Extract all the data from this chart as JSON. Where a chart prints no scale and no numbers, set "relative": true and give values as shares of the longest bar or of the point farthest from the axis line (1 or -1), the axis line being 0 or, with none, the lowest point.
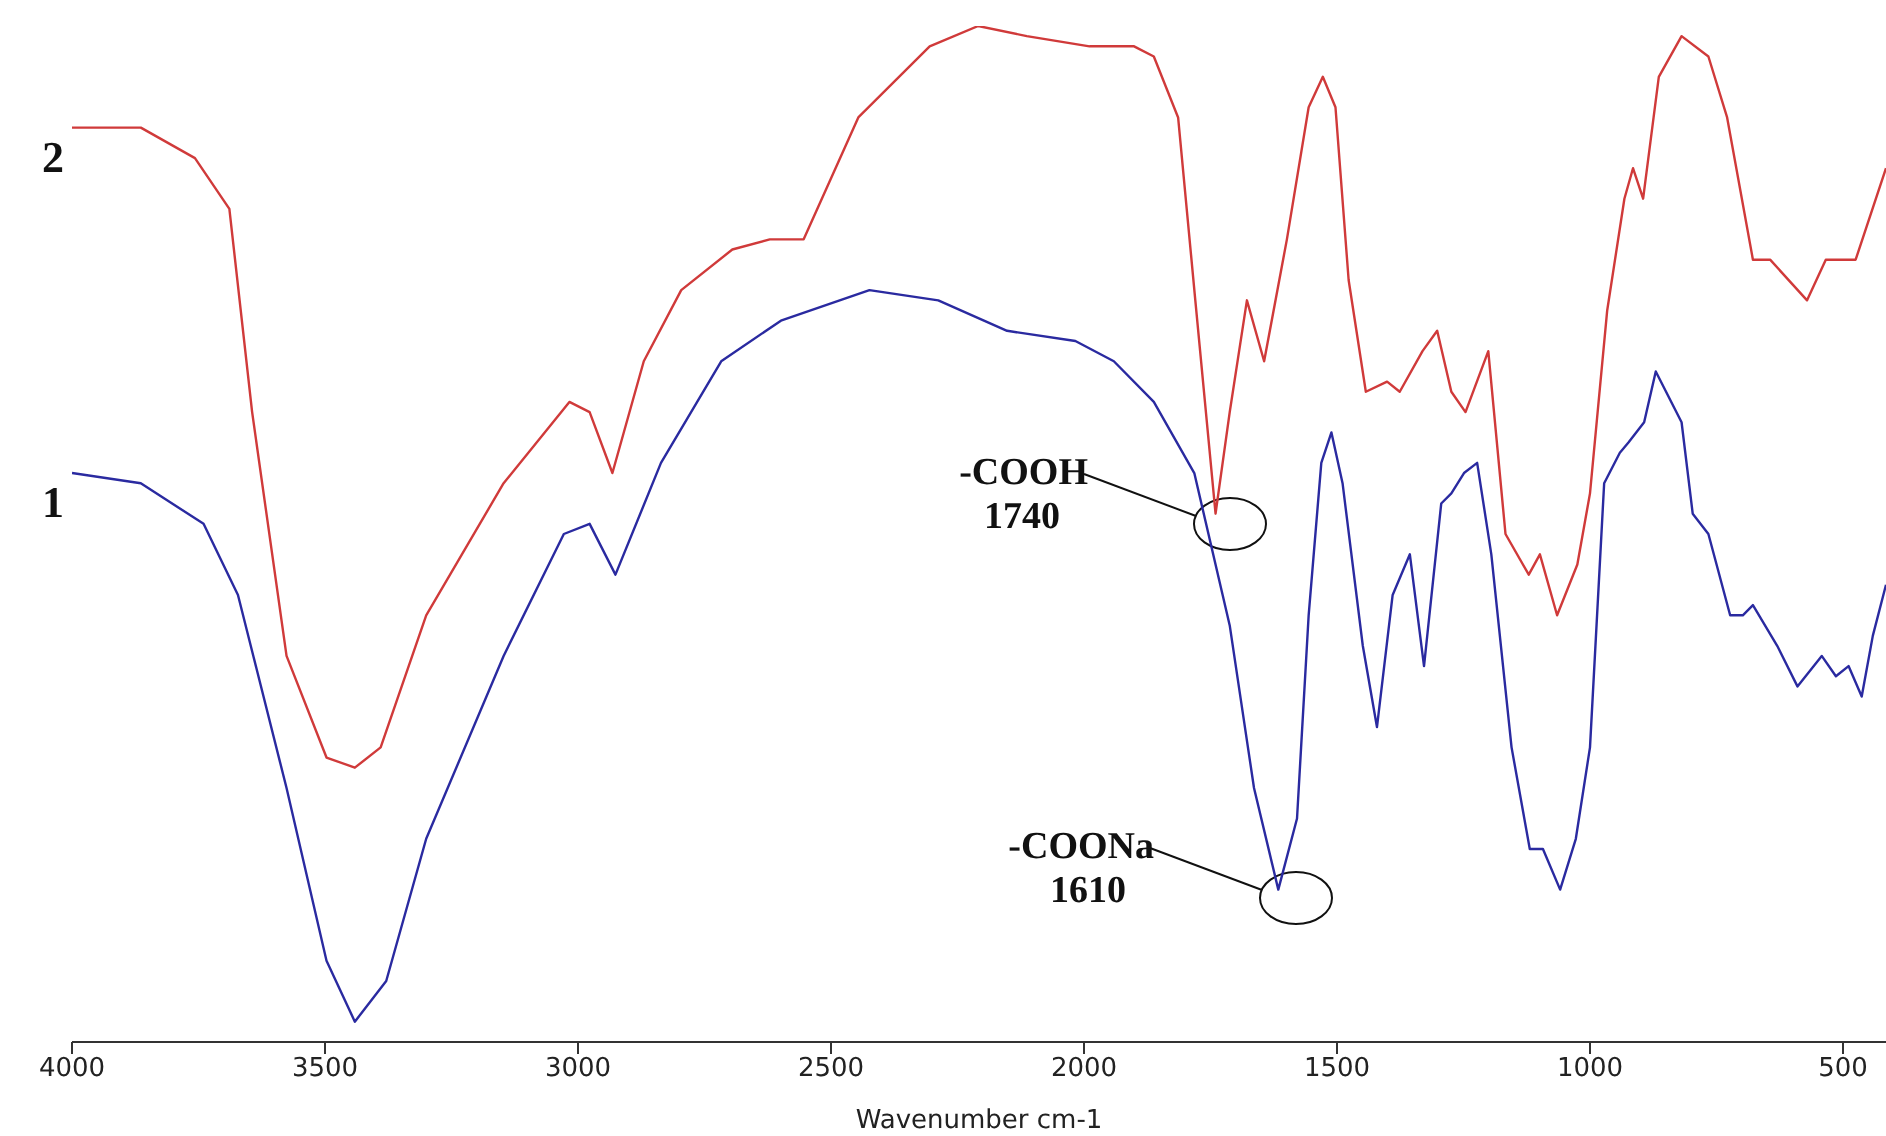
{
  "chart_data": {
    "type": "line",
    "xlabel": "Wavenumber cm-1",
    "relative": true,
    "legend": false,
    "grid": false,
    "marker": "none",
    "line_style": "solid",
    "xlim": [
      4000,
      415
    ],
    "xticks": [
      4000,
      3500,
      3000,
      2500,
      2000,
      1500,
      1000,
      500
    ],
    "series": [
      {
        "name": "1",
        "color": "#2a2aa0",
        "x": [
          4000,
          3864,
          3740,
          3672,
          3576,
          3497,
          3441,
          3379,
          3300,
          3147,
          3028,
          2977,
          2926,
          2836,
          2717,
          2599,
          2424,
          2288,
          2152,
          2017,
          1941,
          1862,
          1782,
          1726,
          1712,
          1664,
          1616,
          1579,
          1556,
          1531,
          1511,
          1489,
          1449,
          1421,
          1390,
          1356,
          1328,
          1294,
          1274,
          1249,
          1223,
          1195,
          1155,
          1119,
          1093,
          1059,
          1028,
          1000,
          972,
          941,
          924,
          893,
          870,
          819,
          797,
          766,
          723,
          698,
          678,
          630,
          590,
          542,
          514,
          489,
          463,
          441,
          415
        ],
        "values": [
          0.56,
          0.55,
          0.51,
          0.44,
          0.25,
          0.08,
          0.02,
          0.06,
          0.2,
          0.38,
          0.5,
          0.51,
          0.46,
          0.57,
          0.67,
          0.71,
          0.74,
          0.73,
          0.7,
          0.69,
          0.67,
          0.63,
          0.56,
          0.44,
          0.41,
          0.25,
          0.15,
          0.22,
          0.42,
          0.57,
          0.6,
          0.55,
          0.39,
          0.31,
          0.44,
          0.48,
          0.37,
          0.53,
          0.54,
          0.56,
          0.57,
          0.48,
          0.29,
          0.19,
          0.19,
          0.15,
          0.2,
          0.29,
          0.55,
          0.58,
          0.59,
          0.61,
          0.66,
          0.61,
          0.52,
          0.5,
          0.42,
          0.42,
          0.43,
          0.39,
          0.35,
          0.38,
          0.36,
          0.37,
          0.34,
          0.4,
          0.45
        ]
      },
      {
        "name": "2",
        "color": "#d03a3a",
        "x": [
          4000,
          3864,
          3757,
          3689,
          3644,
          3576,
          3497,
          3441,
          3390,
          3300,
          3147,
          3017,
          2977,
          2932,
          2870,
          2796,
          2695,
          2621,
          2588,
          2554,
          2446,
          2305,
          2209,
          2113,
          1989,
          1901,
          1862,
          1814,
          1780,
          1740,
          1712,
          1678,
          1644,
          1599,
          1556,
          1528,
          1503,
          1477,
          1443,
          1401,
          1376,
          1331,
          1302,
          1274,
          1246,
          1201,
          1167,
          1121,
          1099,
          1065,
          1025,
          1000,
          966,
          932,
          915,
          895,
          864,
          819,
          766,
          729,
          678,
          644,
          571,
          534,
          475,
          415
        ],
        "values": [
          0.9,
          0.9,
          0.87,
          0.82,
          0.62,
          0.38,
          0.28,
          0.27,
          0.29,
          0.42,
          0.55,
          0.63,
          0.62,
          0.56,
          0.67,
          0.74,
          0.78,
          0.79,
          0.79,
          0.79,
          0.91,
          0.98,
          1.0,
          0.99,
          0.98,
          0.98,
          0.97,
          0.91,
          0.73,
          0.52,
          0.62,
          0.73,
          0.67,
          0.79,
          0.92,
          0.95,
          0.92,
          0.75,
          0.64,
          0.65,
          0.64,
          0.68,
          0.7,
          0.64,
          0.62,
          0.68,
          0.5,
          0.46,
          0.48,
          0.42,
          0.47,
          0.54,
          0.72,
          0.83,
          0.86,
          0.83,
          0.95,
          0.99,
          0.97,
          0.91,
          0.77,
          0.77,
          0.73,
          0.77,
          0.77,
          0.86
        ]
      }
    ],
    "annotations": [
      "-COOH\n1740",
      "-COONa\n1610"
    ]
  }
}
